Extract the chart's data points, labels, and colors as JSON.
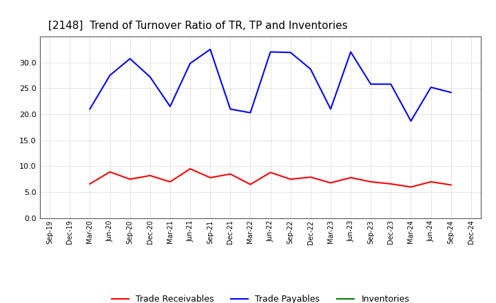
{
  "title": "[2148]  Trend of Turnover Ratio of TR, TP and Inventories",
  "x_labels": [
    "Sep-19",
    "Dec-19",
    "Mar-20",
    "Jun-20",
    "Sep-20",
    "Dec-20",
    "Mar-21",
    "Jun-21",
    "Sep-21",
    "Dec-21",
    "Mar-22",
    "Jun-22",
    "Sep-22",
    "Dec-22",
    "Mar-23",
    "Jun-23",
    "Sep-23",
    "Dec-23",
    "Mar-24",
    "Jun-24",
    "Sep-24",
    "Dec-24"
  ],
  "trade_receivables": [
    null,
    null,
    6.6,
    8.9,
    7.5,
    8.2,
    7.0,
    9.5,
    7.8,
    8.5,
    6.5,
    8.8,
    7.5,
    7.9,
    6.8,
    7.8,
    7.0,
    6.6,
    6.0,
    7.0,
    6.4,
    null
  ],
  "trade_payables": [
    null,
    null,
    21.0,
    27.5,
    30.7,
    27.2,
    21.5,
    29.8,
    32.5,
    21.0,
    20.3,
    32.0,
    31.9,
    28.7,
    21.0,
    32.0,
    25.8,
    25.8,
    18.7,
    25.2,
    24.2,
    null
  ],
  "inventories": [
    null,
    null,
    null,
    null,
    null,
    null,
    null,
    null,
    null,
    null,
    null,
    null,
    null,
    null,
    null,
    null,
    null,
    null,
    null,
    null,
    null,
    null
  ],
  "tr_color": "#ff0000",
  "tp_color": "#0000ff",
  "inv_color": "#008000",
  "ylim": [
    0.0,
    35.0
  ],
  "yticks": [
    0.0,
    5.0,
    10.0,
    15.0,
    20.0,
    25.0,
    30.0
  ],
  "grid_color": "#999999",
  "background_color": "#ffffff",
  "title_fontsize": 11,
  "legend_fontsize": 9,
  "line_width": 1.5
}
